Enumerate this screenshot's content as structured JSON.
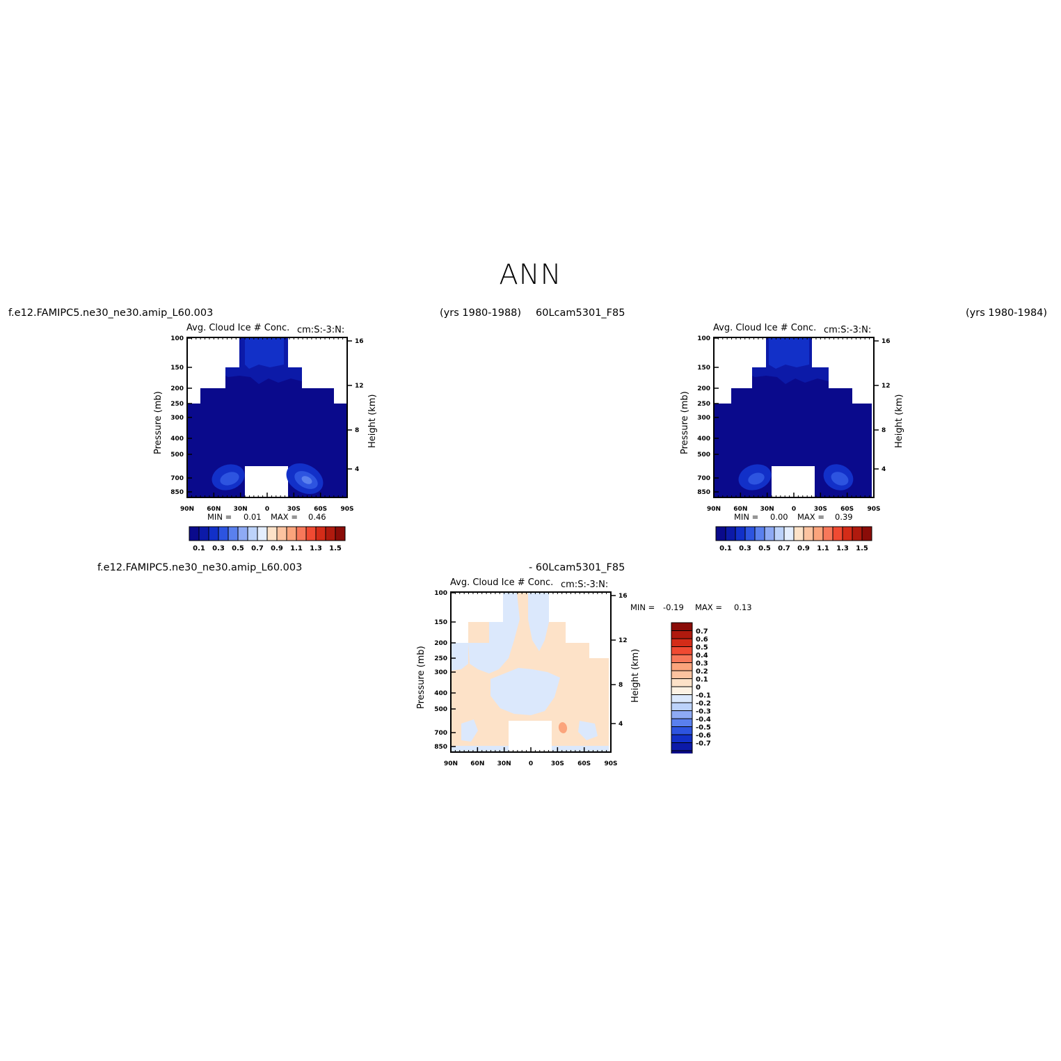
{
  "page": {
    "title": "ANN"
  },
  "left": {
    "case_name": "f.e12.FAMIPC5.ne30_ne30.amip_L60.003",
    "years": "(yrs 1980-1988)",
    "title": "Avg. Cloud Ice # Conc.",
    "units": "cm:S:-3:N:",
    "min_label": "MIN =",
    "min_value": "0.01",
    "max_label": "MAX =",
    "max_value": "0.46"
  },
  "right": {
    "case_name": "60Lcam5301_F85",
    "years": "(yrs 1980-1984)",
    "title": "Avg. Cloud Ice # Conc.",
    "units": "cm:S:-3:N:",
    "min_label": "MIN =",
    "min_value": "0.00",
    "max_label": "MAX =",
    "max_value": "0.39"
  },
  "diff": {
    "case_a": "f.e12.FAMIPC5.ne30_ne30.amip_L60.003",
    "case_b": "- 60Lcam5301_F85",
    "title": "Avg. Cloud Ice # Conc.",
    "units": "cm:S:-3:N:",
    "min_label": "MIN =",
    "min_value": "-0.19",
    "max_label": "MAX =",
    "max_value": "0.13"
  },
  "axes": {
    "ylabel": "Pressure (mb)",
    "y2label": "Height (km)",
    "xticks": [
      "90N",
      "60N",
      "30N",
      "0",
      "30S",
      "60S",
      "90S"
    ],
    "yticks": [
      "100",
      "150",
      "200",
      "250",
      "300",
      "400",
      "500",
      "700",
      "850"
    ],
    "y2ticks": [
      "16",
      "12",
      "8",
      "4"
    ]
  },
  "colorbars": {
    "main_labels": [
      "0.1",
      "0.3",
      "0.5",
      "0.7",
      "0.9",
      "1.1",
      "1.3",
      "1.5"
    ],
    "main_colors": [
      "#0a0a8c",
      "#0c1aa8",
      "#1230c8",
      "#2d54e0",
      "#5a80ee",
      "#8eaaf4",
      "#bcd2fa",
      "#e4eefe",
      "#fde2c8",
      "#fcc3a0",
      "#fba47c",
      "#f7785a",
      "#f04a32",
      "#d42c18",
      "#b01a0e",
      "#8a0c08"
    ],
    "diff_labels": [
      "0.7",
      "0.6",
      "0.5",
      "0.4",
      "0.3",
      "0.2",
      "0.1",
      "0",
      "-0.1",
      "-0.2",
      "-0.3",
      "-0.4",
      "-0.5",
      "-0.6",
      "-0.7"
    ],
    "diff_colors": [
      "#8a0c08",
      "#b01a0e",
      "#d42c18",
      "#f04a32",
      "#f7785a",
      "#fba47c",
      "#fcc3a0",
      "#fde2c8",
      "#fdf2e4",
      "#dbe8fc",
      "#bcd2fa",
      "#8eaaf4",
      "#5a80ee",
      "#2d54e0",
      "#1230c8",
      "#0c1aa8",
      "#0a0a8c"
    ]
  },
  "chart_data": [
    {
      "type": "heatmap",
      "title": "Avg. Cloud Ice # Conc.",
      "xlabel": "",
      "ylabel": "Pressure (mb)",
      "y2label": "Height (km)",
      "x": [
        "90N",
        "60N",
        "30N",
        "0",
        "30S",
        "60S",
        "90S"
      ],
      "y": [
        100,
        150,
        200,
        250,
        300,
        400,
        500,
        700,
        850
      ],
      "min": 0.01,
      "max": 0.46,
      "levels": [
        0.1,
        0.3,
        0.5,
        0.7,
        0.9,
        1.1,
        1.3,
        1.5
      ]
    },
    {
      "type": "heatmap",
      "title": "Avg. Cloud Ice # Conc.",
      "xlabel": "",
      "ylabel": "Pressure (mb)",
      "y2label": "Height (km)",
      "x": [
        "90N",
        "60N",
        "30N",
        "0",
        "30S",
        "60S",
        "90S"
      ],
      "y": [
        100,
        150,
        200,
        250,
        300,
        400,
        500,
        700,
        850
      ],
      "min": 0.0,
      "max": 0.39,
      "levels": [
        0.1,
        0.3,
        0.5,
        0.7,
        0.9,
        1.1,
        1.3,
        1.5
      ]
    },
    {
      "type": "heatmap",
      "title": "Avg. Cloud Ice # Conc.",
      "xlabel": "",
      "ylabel": "Pressure (mb)",
      "y2label": "Height (km)",
      "x": [
        "90N",
        "60N",
        "30N",
        "0",
        "30S",
        "60S",
        "90S"
      ],
      "y": [
        100,
        150,
        200,
        250,
        300,
        400,
        500,
        700,
        850
      ],
      "min": -0.19,
      "max": 0.13,
      "levels": [
        -0.7,
        -0.6,
        -0.5,
        -0.4,
        -0.3,
        -0.2,
        -0.1,
        0,
        0.1,
        0.2,
        0.3,
        0.4,
        0.5,
        0.6,
        0.7
      ]
    }
  ]
}
